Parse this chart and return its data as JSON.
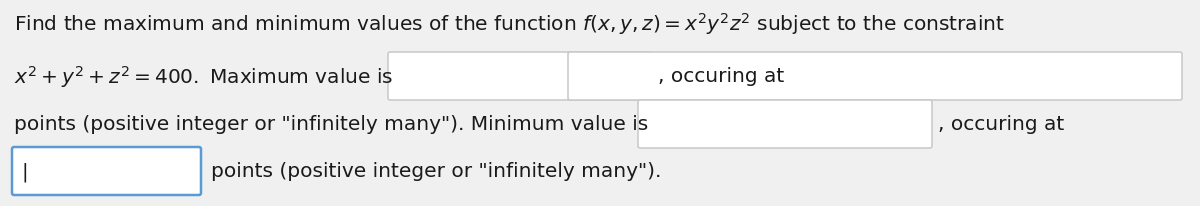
{
  "bg_color": "#f0f0f0",
  "text_color": "#1a1a1a",
  "font_size": 14.5,
  "box_fill": "#ffffff",
  "box_edge_normal": "#c8c8c8",
  "box_edge_active": "#5b9bd5",
  "line1_part1": "Find the maximum and minimum values of the function ",
  "line1_formula": "$f(x, y, z) = x^2y^2z^2$",
  "line1_part2": " subject to the constraint",
  "line2_part1": "$x^2 + y^2 + z^2 = 400.$ Maximum value is",
  "line2_comma_at": ", occuring at",
  "line3_part1": "points (positive integer or \"infinitely many\"). Minimum value is",
  "line3_comma_at": ", occuring at",
  "line4_cursor": "|",
  "line4_part1": "points (positive integer or \"infinitely many\")."
}
